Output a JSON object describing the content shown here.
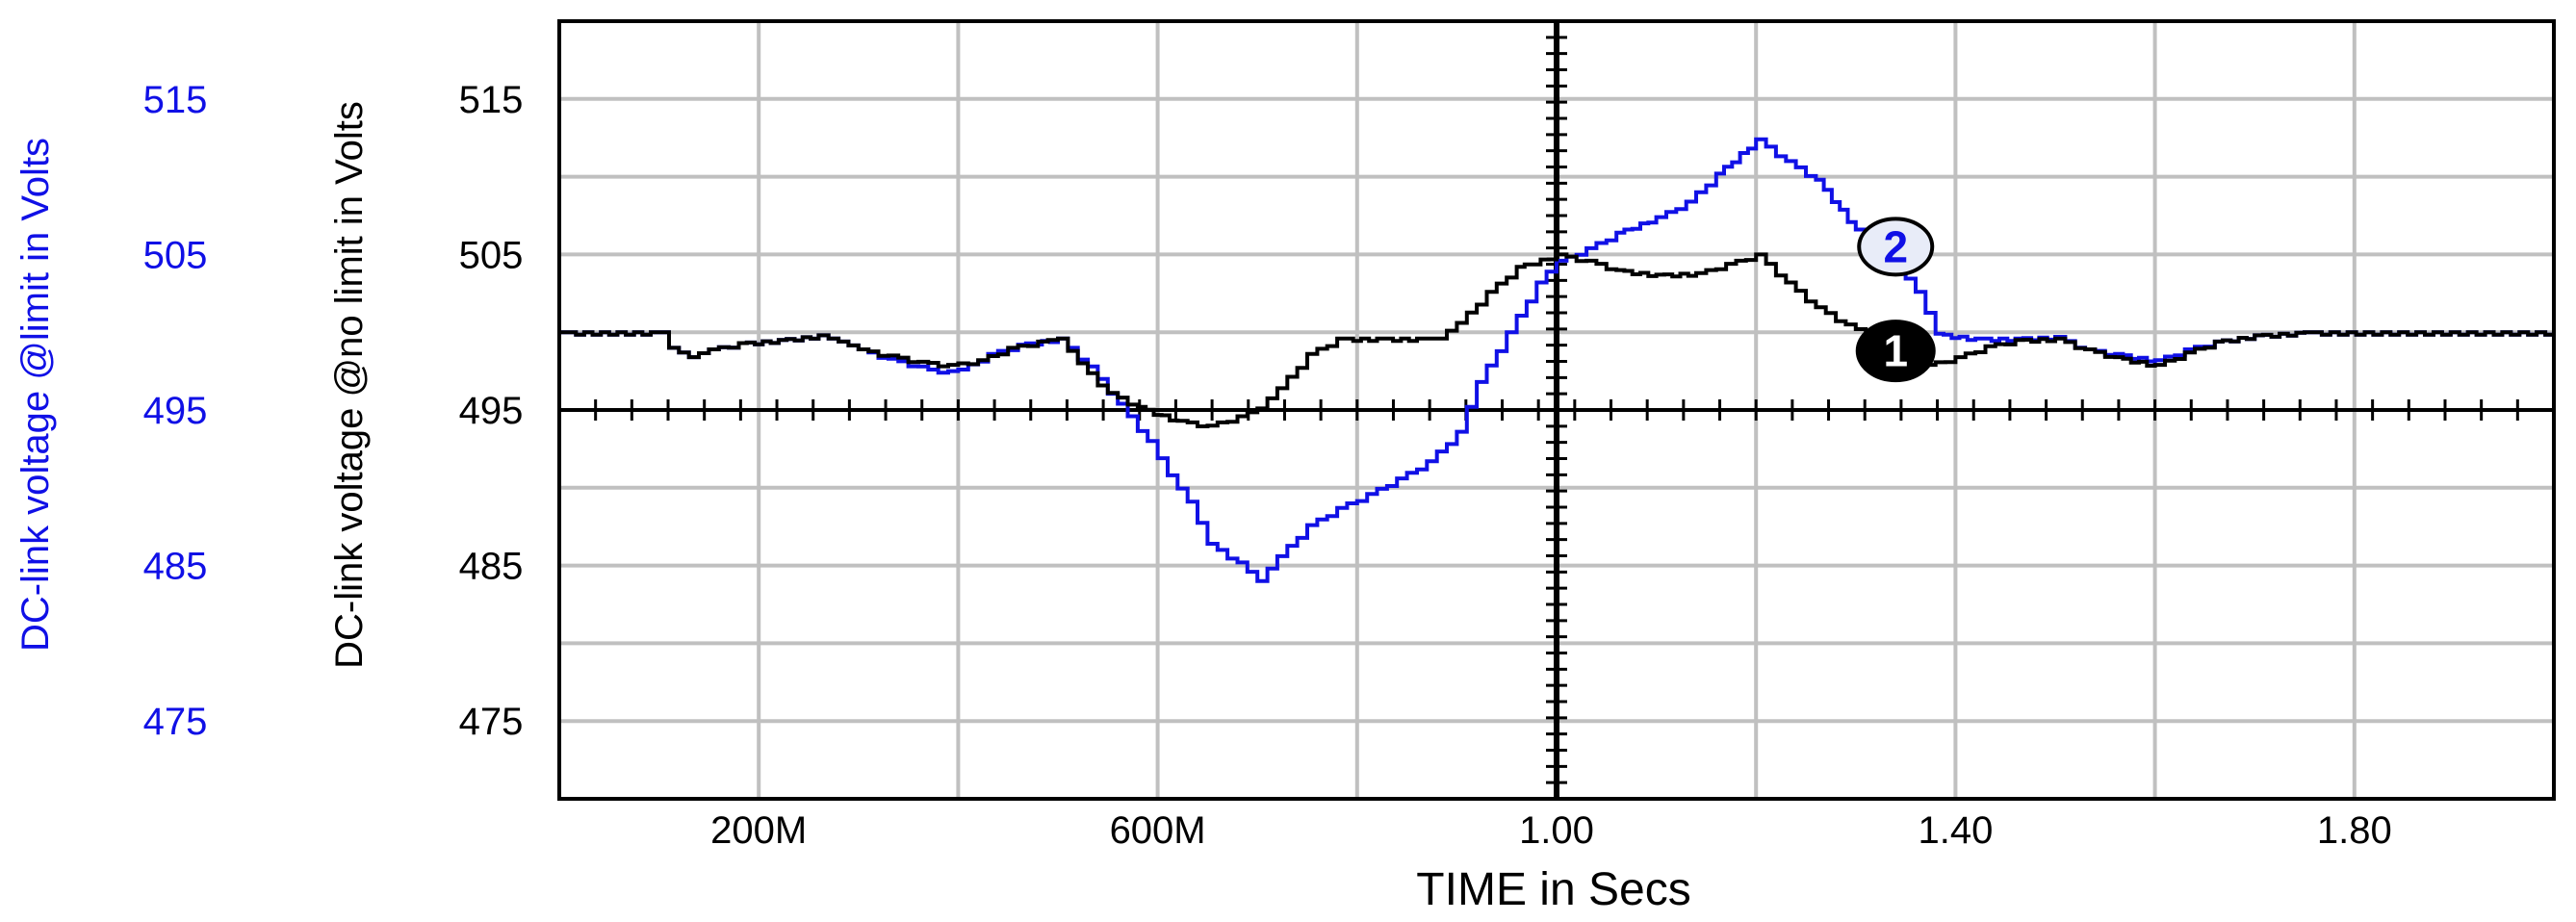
{
  "chart_data": {
    "type": "line",
    "title": "",
    "xlabel": "TIME in Secs",
    "x_ticks": [
      {
        "value": 0.2,
        "label": "200M"
      },
      {
        "value": 0.6,
        "label": "600M"
      },
      {
        "value": 1.0,
        "label": "1.00"
      },
      {
        "value": 1.4,
        "label": "1.40"
      },
      {
        "value": 1.8,
        "label": "1.80"
      }
    ],
    "xlim": [
      0.0,
      2.0
    ],
    "ylim": [
      470,
      520
    ],
    "y_axes": [
      {
        "label": "DC-link voltage @limit in Volts",
        "color": "#1010e6",
        "ticks": [
          "515",
          "505",
          "495",
          "485",
          "475"
        ]
      },
      {
        "label": "DC-link voltage @no limit in Volts",
        "color": "#000000",
        "ticks": [
          "515",
          "505",
          "495",
          "485",
          "475"
        ]
      }
    ],
    "y_tick_values": [
      515,
      505,
      495,
      485,
      475
    ],
    "grid": true,
    "series": [
      {
        "marker": "1",
        "color": "#000000",
        "points": [
          [
            0.0,
            500
          ],
          [
            0.1,
            500
          ],
          [
            0.11,
            499.0
          ],
          [
            0.13,
            498.4
          ],
          [
            0.15,
            498.9
          ],
          [
            0.18,
            499.3
          ],
          [
            0.22,
            499.5
          ],
          [
            0.26,
            499.8
          ],
          [
            0.28,
            499.4
          ],
          [
            0.3,
            498.9
          ],
          [
            0.33,
            498.5
          ],
          [
            0.36,
            498.1
          ],
          [
            0.39,
            497.9
          ],
          [
            0.42,
            498.2
          ],
          [
            0.45,
            499.0
          ],
          [
            0.48,
            499.4
          ],
          [
            0.5,
            499.6
          ],
          [
            0.52,
            498.0
          ],
          [
            0.55,
            496.1
          ],
          [
            0.58,
            495.2
          ],
          [
            0.62,
            494.3
          ],
          [
            0.65,
            494.0
          ],
          [
            0.68,
            494.6
          ],
          [
            0.7,
            495.1
          ],
          [
            0.72,
            496.4
          ],
          [
            0.75,
            498.6
          ],
          [
            0.78,
            499.6
          ],
          [
            0.82,
            499.6
          ],
          [
            0.86,
            499.6
          ],
          [
            0.88,
            499.6
          ],
          [
            0.9,
            500.6
          ],
          [
            0.93,
            502.6
          ],
          [
            0.96,
            504.2
          ],
          [
            1.0,
            505.0
          ],
          [
            1.03,
            504.6
          ],
          [
            1.06,
            504.0
          ],
          [
            1.1,
            503.7
          ],
          [
            1.14,
            503.8
          ],
          [
            1.17,
            504.4
          ],
          [
            1.2,
            505.0
          ],
          [
            1.23,
            503.2
          ],
          [
            1.26,
            501.6
          ],
          [
            1.29,
            500.5
          ],
          [
            1.32,
            499.6
          ],
          [
            1.34,
            498.6
          ],
          [
            1.37,
            497.9
          ],
          [
            1.4,
            498.4
          ],
          [
            1.43,
            499.1
          ],
          [
            1.46,
            499.5
          ],
          [
            1.5,
            499.6
          ],
          [
            1.53,
            498.9
          ],
          [
            1.56,
            498.4
          ],
          [
            1.6,
            497.9
          ],
          [
            1.63,
            498.7
          ],
          [
            1.66,
            499.4
          ],
          [
            1.7,
            499.8
          ],
          [
            1.75,
            500
          ],
          [
            2.0,
            500
          ]
        ]
      },
      {
        "marker": "2",
        "color": "#1010e6",
        "points": [
          [
            0.0,
            500
          ],
          [
            0.1,
            500
          ],
          [
            0.11,
            499.0
          ],
          [
            0.13,
            498.4
          ],
          [
            0.15,
            498.9
          ],
          [
            0.18,
            499.3
          ],
          [
            0.22,
            499.5
          ],
          [
            0.26,
            499.8
          ],
          [
            0.28,
            499.4
          ],
          [
            0.3,
            498.9
          ],
          [
            0.33,
            498.3
          ],
          [
            0.36,
            497.8
          ],
          [
            0.38,
            497.4
          ],
          [
            0.4,
            497.6
          ],
          [
            0.43,
            498.6
          ],
          [
            0.46,
            499.2
          ],
          [
            0.5,
            499.6
          ],
          [
            0.53,
            497.8
          ],
          [
            0.56,
            495.4
          ],
          [
            0.59,
            493.0
          ],
          [
            0.61,
            490.8
          ],
          [
            0.63,
            489.1
          ],
          [
            0.65,
            486.4
          ],
          [
            0.68,
            485.2
          ],
          [
            0.7,
            484.0
          ],
          [
            0.72,
            485.6
          ],
          [
            0.75,
            487.6
          ],
          [
            0.78,
            488.7
          ],
          [
            0.81,
            489.6
          ],
          [
            0.84,
            490.6
          ],
          [
            0.87,
            491.7
          ],
          [
            0.9,
            493.6
          ],
          [
            0.92,
            496.8
          ],
          [
            0.95,
            500.0
          ],
          [
            0.98,
            503.2
          ],
          [
            1.0,
            504.6
          ],
          [
            1.03,
            505.4
          ],
          [
            1.06,
            506.4
          ],
          [
            1.1,
            507.4
          ],
          [
            1.13,
            508.4
          ],
          [
            1.16,
            510.2
          ],
          [
            1.2,
            512.4
          ],
          [
            1.23,
            511.0
          ],
          [
            1.26,
            509.8
          ],
          [
            1.3,
            506.6
          ],
          [
            1.33,
            505.6
          ],
          [
            1.36,
            502.6
          ],
          [
            1.38,
            499.9
          ],
          [
            1.42,
            499.6
          ],
          [
            1.46,
            499.6
          ],
          [
            1.5,
            499.7
          ],
          [
            1.53,
            498.9
          ],
          [
            1.56,
            498.6
          ],
          [
            1.6,
            498.2
          ],
          [
            1.63,
            498.9
          ],
          [
            1.66,
            499.4
          ],
          [
            1.7,
            499.8
          ],
          [
            1.75,
            500
          ],
          [
            2.0,
            500
          ]
        ]
      }
    ]
  }
}
